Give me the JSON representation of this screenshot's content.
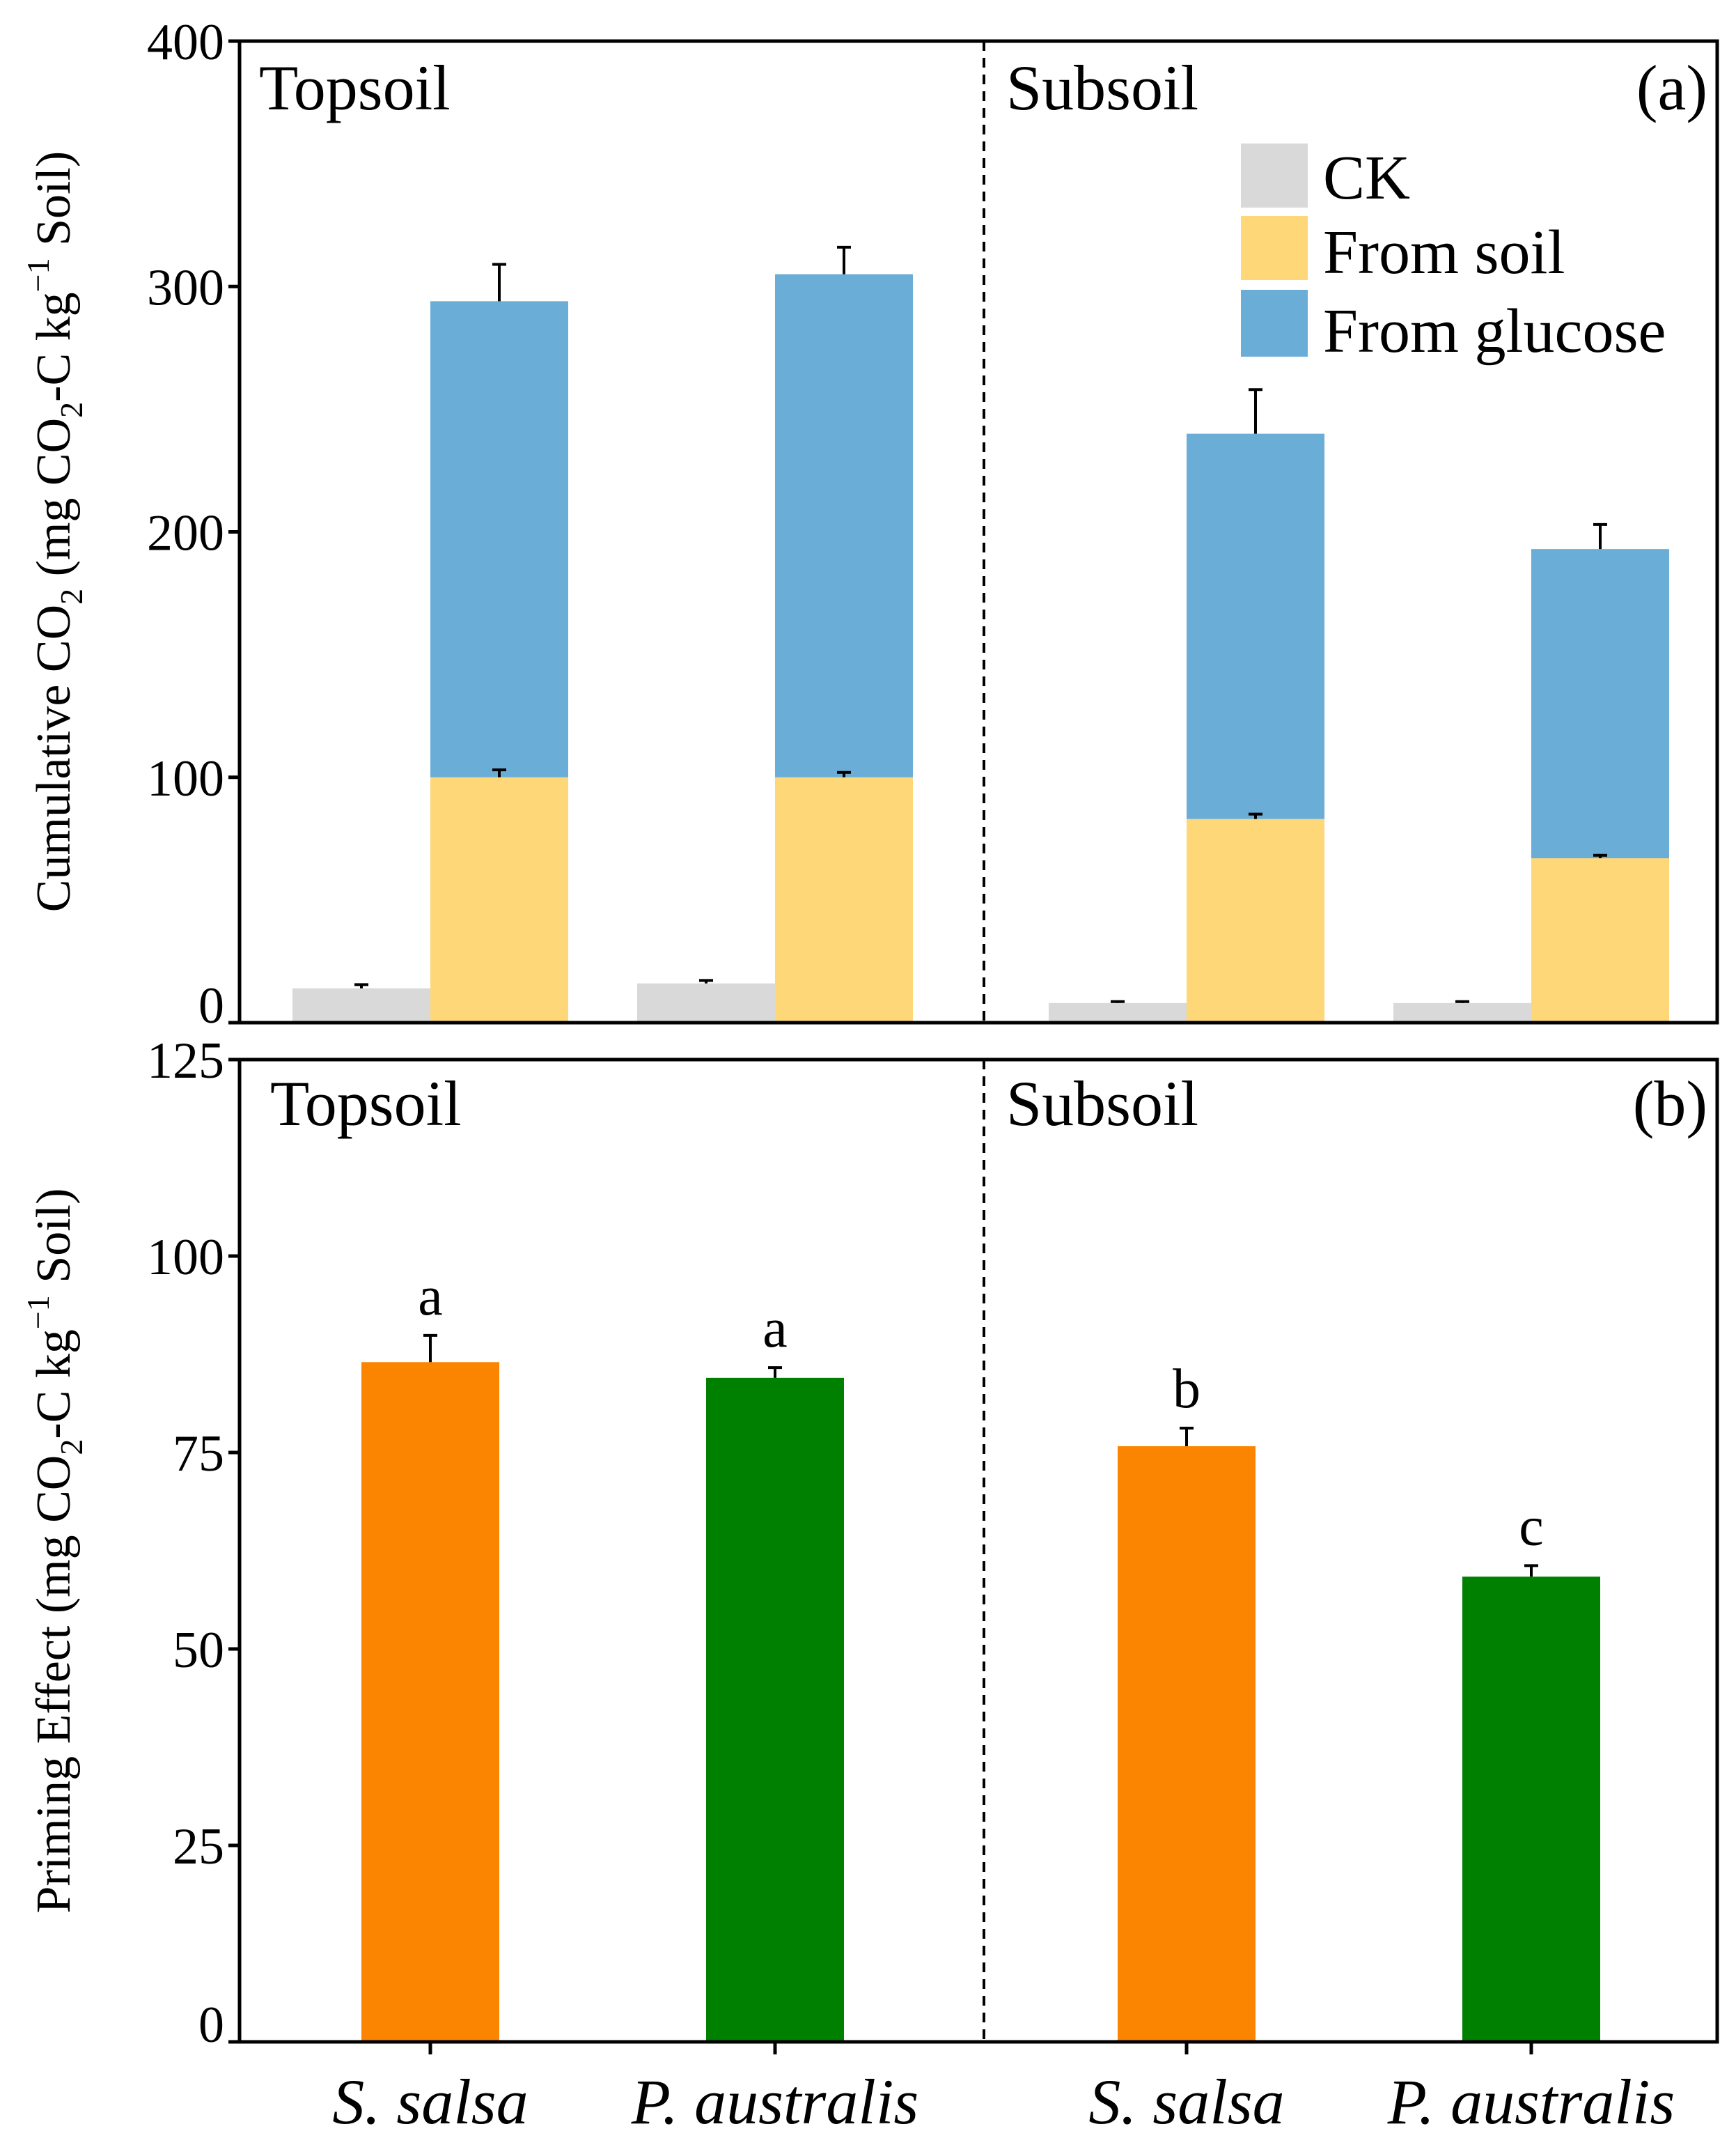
{
  "chart_data": [
    {
      "id": "a",
      "type": "bar",
      "stacked": true,
      "panel_label": "(a)",
      "groups": [
        "Topsoil",
        "Subsoil"
      ],
      "categories": [
        "S. salsa",
        "P. australis",
        "S. salsa",
        "P. australis"
      ],
      "ylabel": {
        "main": "Cumulative CO",
        "sub": "2",
        "mid": " (mg CO",
        "sub2": "2",
        "mid2": "-C kg",
        "sup": "−1",
        "end": " Soil)"
      },
      "ylim": [
        0,
        400
      ],
      "yticks": [
        "0",
        "100",
        "200",
        "300",
        "400"
      ],
      "legend": {
        "position": "top-right",
        "items": [
          {
            "label": "CK",
            "color": "#d9d9d9"
          },
          {
            "label": "From soil",
            "color": "#fdd778"
          },
          {
            "label": "From glucose",
            "color": "#6aadd6"
          }
        ]
      },
      "series": [
        {
          "name": "CK",
          "values": [
            14,
            16,
            8,
            8
          ],
          "errors": [
            1.5,
            1.2,
            0.6,
            0.6
          ]
        },
        {
          "name": "From soil",
          "values": [
            100,
            100,
            83,
            67
          ],
          "errors": [
            3,
            2,
            2,
            1.2
          ]
        },
        {
          "name": "From glucose",
          "values": [
            194,
            205,
            157,
            126
          ],
          "totals": [
            294,
            305,
            240,
            193
          ],
          "errors": [
            15,
            11,
            18,
            10
          ]
        }
      ]
    },
    {
      "id": "b",
      "type": "bar",
      "panel_label": "(b)",
      "groups": [
        "Topsoil",
        "Subsoil"
      ],
      "categories": [
        "S. salsa",
        "P. australis",
        "S. salsa",
        "P. australis"
      ],
      "ylabel": {
        "main": "Priming Effect (mg CO",
        "sub": "2",
        "mid": "-C kg",
        "sup": "−1",
        "end": " Soil)"
      },
      "ylim": [
        0,
        125
      ],
      "yticks": [
        "0",
        "25",
        "50",
        "75",
        "100",
        "125"
      ],
      "values": [
        86.5,
        84.5,
        75.8,
        59.2
      ],
      "errors": [
        3.4,
        1.3,
        2.3,
        1.4
      ],
      "colors": [
        "#fb8500",
        "#008000",
        "#fb8500",
        "#008000"
      ],
      "significance": [
        "a",
        "a",
        "b",
        "c"
      ]
    }
  ]
}
